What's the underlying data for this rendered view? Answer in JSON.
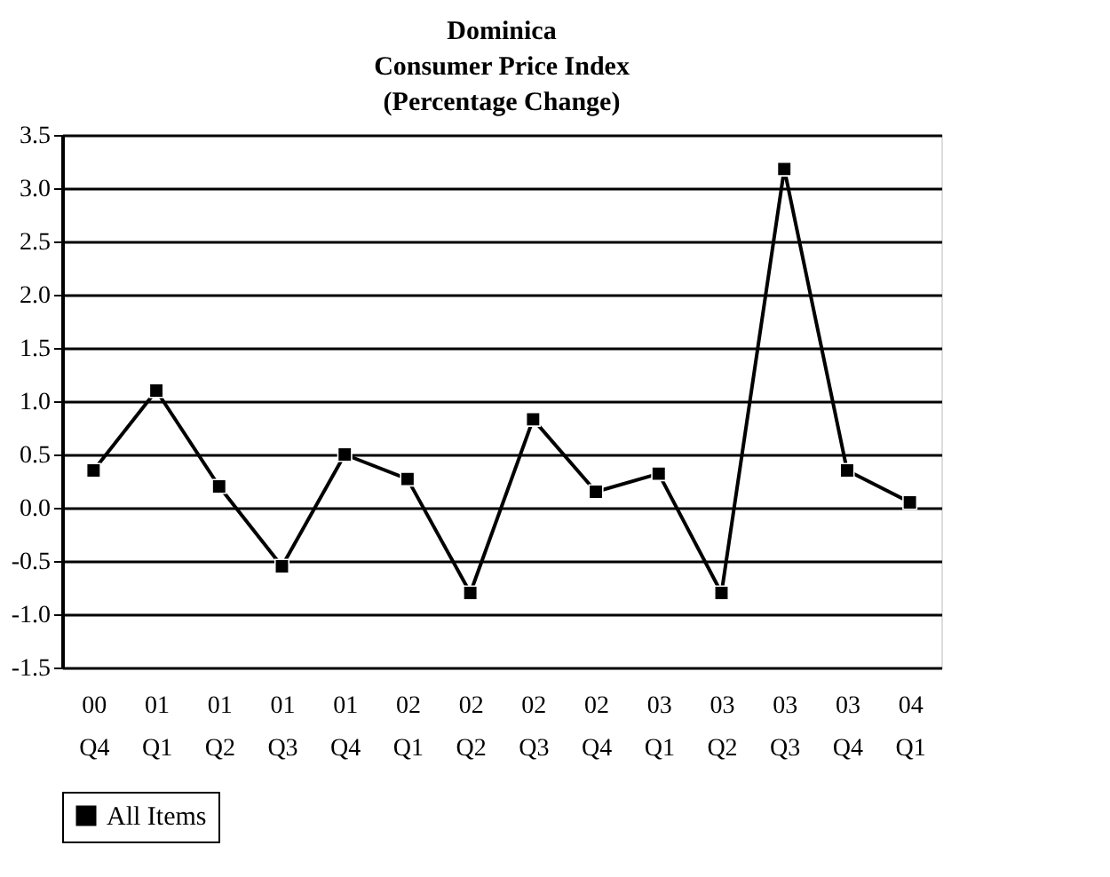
{
  "chart_data": {
    "type": "line",
    "title": "Dominica\nConsumer Price Index\n(Percentage Change)",
    "categories": [
      "00 Q4",
      "01 Q1",
      "01 Q2",
      "01 Q3",
      "01 Q4",
      "02 Q1",
      "02 Q2",
      "02 Q3",
      "02 Q4",
      "03 Q1",
      "03 Q2",
      "03 Q3",
      "03 Q4",
      "04 Q1"
    ],
    "series": [
      {
        "name": "All Items",
        "color": "#000000",
        "values": [
          0.35,
          1.1,
          0.2,
          -0.55,
          0.5,
          0.27,
          -0.8,
          0.83,
          0.15,
          0.32,
          -0.8,
          3.18,
          0.35,
          0.05
        ]
      }
    ],
    "ylim": [
      -1.5,
      3.5
    ],
    "yticks": [
      {
        "value": -1.5,
        "label": "-1.5"
      },
      {
        "value": -1.0,
        "label": "-1.0"
      },
      {
        "value": -0.5,
        "label": "-0.5"
      },
      {
        "value": 0.0,
        "label": "0.0"
      },
      {
        "value": 0.5,
        "label": "0.5"
      },
      {
        "value": 1.0,
        "label": "1.0"
      },
      {
        "value": 1.5,
        "label": "1.5"
      },
      {
        "value": 2.0,
        "label": "2.0"
      },
      {
        "value": 2.5,
        "label": "2.5"
      },
      {
        "value": 3.0,
        "label": "3.0"
      },
      {
        "value": 3.5,
        "label": "3.5"
      }
    ],
    "grid": "y",
    "legend": "bottom",
    "marker": "square",
    "line_style": "solid"
  }
}
